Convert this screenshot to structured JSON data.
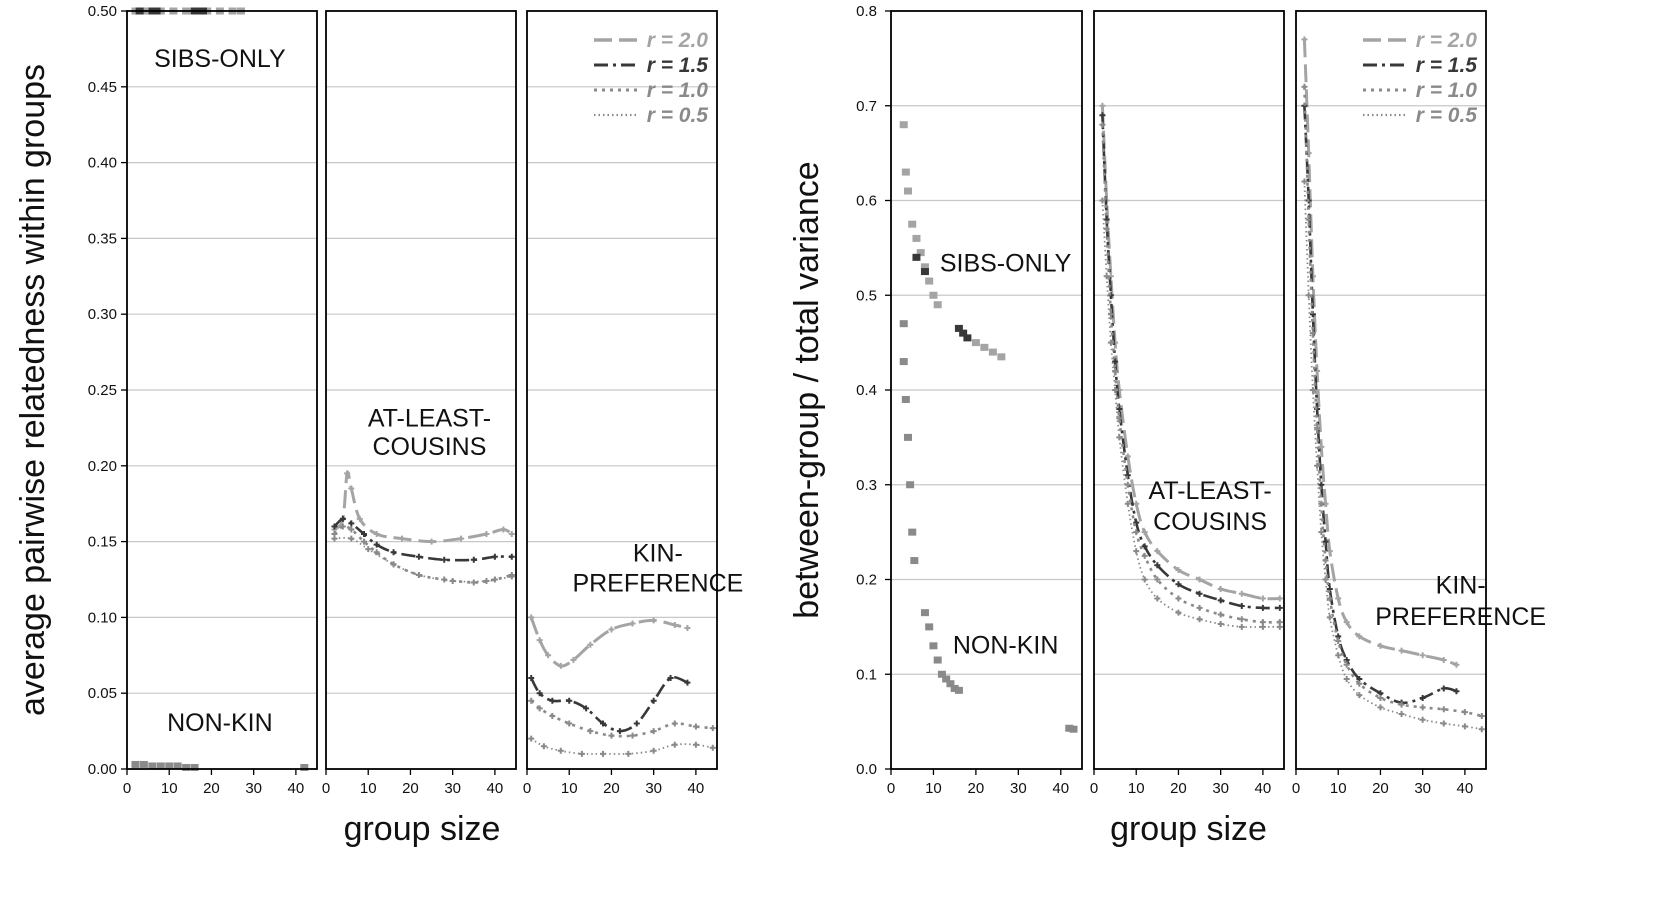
{
  "colors": {
    "r2.0": "#a4a4a4",
    "r1.5": "#383838",
    "r1.0": "#8a8a8a",
    "r0.5": "#8a8a8a",
    "grid": "#c8c8c8",
    "frame": "#000000"
  },
  "legend": [
    {
      "key": "r2.0",
      "label": "r = 2.0",
      "dash": "18,7",
      "width": 3
    },
    {
      "key": "r1.5",
      "label": "r = 1.5",
      "dash": "14,5,3,5",
      "width": 2.6
    },
    {
      "key": "r1.0",
      "label": "r = 1.0",
      "dash": "3,5",
      "width": 2.6
    },
    {
      "key": "r0.5",
      "label": "r = 0.5",
      "dash": "1.5,3",
      "width": 1.8
    }
  ],
  "chart_data": [
    {
      "type": "scatter",
      "xlabel": "group size",
      "ylabel": "average pairwise relatedness within groups",
      "ylim": [
        0,
        0.5
      ],
      "yticks": [
        "0.00",
        "0.05",
        "0.10",
        "0.15",
        "0.20",
        "0.25",
        "0.30",
        "0.35",
        "0.40",
        "0.45",
        "0.50"
      ],
      "xlim": [
        0,
        45
      ],
      "xticks": [
        "0",
        "10",
        "20",
        "30",
        "40"
      ],
      "grid": true,
      "panels": [
        {
          "labels": [
            {
              "text": "SIBS-ONLY",
              "at": [
                22,
                0.463
              ]
            },
            {
              "text": "NON-KIN",
              "at": [
                22,
                0.025
              ]
            }
          ],
          "series": [
            {
              "key": "r2.0",
              "x": [
                2,
                4,
                6,
                8,
                11,
                14,
                16,
                19,
                22,
                25,
                27
              ],
              "y": [
                0.5,
                0.5,
                0.5,
                0.5,
                0.5,
                0.5,
                0.5,
                0.5,
                0.5,
                0.5,
                0.5
              ],
              "line": false
            },
            {
              "key": "r1.5",
              "x": [
                3,
                6,
                7,
                16,
                17,
                18
              ],
              "y": [
                0.5,
                0.5,
                0.5,
                0.5,
                0.5,
                0.5
              ],
              "line": false
            },
            {
              "key": "r1.0",
              "x": [
                2,
                4,
                6,
                8,
                10,
                12,
                14,
                16,
                42
              ],
              "y": [
                0.003,
                0.003,
                0.002,
                0.002,
                0.002,
                0.002,
                0.001,
                0.001,
                0.001
              ],
              "line": false
            }
          ]
        },
        {
          "labels": [
            {
              "text": "AT-LEAST-",
              "at": [
                24.5,
                0.226
              ]
            },
            {
              "text": "COUSINS",
              "at": [
                24.5,
                0.207
              ]
            }
          ],
          "series": [
            {
              "key": "r2.0",
              "x": [
                2,
                4,
                5,
                6,
                8,
                12,
                18,
                25,
                32,
                38,
                42,
                44
              ],
              "y": [
                0.158,
                0.165,
                0.195,
                0.185,
                0.165,
                0.155,
                0.152,
                0.15,
                0.152,
                0.155,
                0.158,
                0.155
              ],
              "curve": true
            },
            {
              "key": "r1.5",
              "x": [
                2,
                4,
                6,
                9,
                12,
                16,
                22,
                28,
                35,
                40,
                44
              ],
              "y": [
                0.16,
                0.165,
                0.162,
                0.155,
                0.148,
                0.143,
                0.14,
                0.138,
                0.138,
                0.14,
                0.14
              ],
              "curve": true
            },
            {
              "key": "r1.0",
              "x": [
                2,
                4,
                6,
                9,
                12,
                16,
                22,
                28,
                35,
                40,
                44
              ],
              "y": [
                0.155,
                0.16,
                0.158,
                0.15,
                0.143,
                0.135,
                0.128,
                0.125,
                0.123,
                0.125,
                0.128
              ],
              "curve": true
            },
            {
              "key": "r0.5",
              "x": [
                2,
                6,
                10,
                16,
                22,
                30,
                38,
                44
              ],
              "y": [
                0.152,
                0.152,
                0.145,
                0.135,
                0.128,
                0.124,
                0.124,
                0.127
              ],
              "curve": true
            }
          ]
        },
        {
          "labels": [
            {
              "text": "KIN-",
              "at": [
                31,
                0.137
              ]
            },
            {
              "text": "PREFERENCE",
              "at": [
                31,
                0.117
              ]
            }
          ],
          "series": [
            {
              "key": "r2.0",
              "x": [
                1,
                3,
                5,
                8,
                11,
                15,
                20,
                25,
                30,
                35,
                38
              ],
              "y": [
                0.1,
                0.085,
                0.075,
                0.068,
                0.072,
                0.082,
                0.092,
                0.096,
                0.098,
                0.095,
                0.093
              ],
              "curve": true
            },
            {
              "key": "r1.5",
              "x": [
                1,
                3,
                6,
                10,
                14,
                18,
                22,
                26,
                30,
                34,
                38
              ],
              "y": [
                0.06,
                0.05,
                0.045,
                0.045,
                0.04,
                0.03,
                0.025,
                0.03,
                0.045,
                0.06,
                0.057
              ],
              "curve": true
            },
            {
              "key": "r1.0",
              "x": [
                1,
                3,
                6,
                10,
                15,
                20,
                25,
                30,
                35,
                40,
                44
              ],
              "y": [
                0.045,
                0.04,
                0.035,
                0.03,
                0.025,
                0.022,
                0.022,
                0.025,
                0.03,
                0.028,
                0.027
              ],
              "curve": true
            },
            {
              "key": "r0.5",
              "x": [
                1,
                4,
                8,
                13,
                18,
                24,
                30,
                35,
                40,
                44
              ],
              "y": [
                0.02,
                0.015,
                0.012,
                0.01,
                0.01,
                0.01,
                0.012,
                0.016,
                0.016,
                0.014
              ],
              "curve": true
            }
          ]
        }
      ]
    },
    {
      "type": "scatter",
      "xlabel": "group size",
      "ylabel": "between-group / total variance",
      "ylim": [
        0,
        0.8
      ],
      "yticks": [
        "0.0",
        "0.1",
        "0.2",
        "0.3",
        "0.4",
        "0.5",
        "0.6",
        "0.7",
        "0.8"
      ],
      "xlim": [
        0,
        45
      ],
      "xticks": [
        "0",
        "10",
        "20",
        "30",
        "40"
      ],
      "grid": true,
      "panels": [
        {
          "labels": [
            {
              "text": "SIBS-ONLY",
              "at": [
                27,
                0.525
              ]
            },
            {
              "text": "NON-KIN",
              "at": [
                27,
                0.122
              ]
            }
          ],
          "series": [
            {
              "key": "r2.0",
              "x": [
                3,
                3.5,
                4,
                5,
                6,
                7,
                8,
                9,
                10,
                11,
                20,
                22,
                24,
                26
              ],
              "y": [
                0.68,
                0.63,
                0.61,
                0.575,
                0.56,
                0.545,
                0.53,
                0.515,
                0.5,
                0.49,
                0.45,
                0.445,
                0.44,
                0.435
              ],
              "line": false
            },
            {
              "key": "r1.5",
              "x": [
                6,
                8,
                16,
                17,
                18
              ],
              "y": [
                0.54,
                0.525,
                0.465,
                0.46,
                0.455
              ],
              "line": false
            },
            {
              "key": "r1.0",
              "x": [
                3,
                3,
                3.5,
                4,
                4.5,
                5,
                5.5,
                8,
                9,
                10,
                11,
                12,
                13,
                14,
                15,
                16,
                42,
                43
              ],
              "y": [
                0.47,
                0.43,
                0.39,
                0.35,
                0.3,
                0.25,
                0.22,
                0.165,
                0.15,
                0.13,
                0.115,
                0.1,
                0.095,
                0.09,
                0.085,
                0.083,
                0.043,
                0.042
              ],
              "line": false
            }
          ]
        },
        {
          "labels": [
            {
              "text": "AT-LEAST-",
              "at": [
                27.5,
                0.285
              ]
            },
            {
              "text": "COUSINS",
              "at": [
                27.5,
                0.252
              ]
            }
          ],
          "series": [
            {
              "key": "r2.0",
              "x": [
                2,
                3,
                4,
                5,
                6,
                8,
                10,
                12,
                15,
                20,
                25,
                30,
                35,
                40,
                44
              ],
              "y": [
                0.7,
                0.6,
                0.52,
                0.45,
                0.4,
                0.33,
                0.28,
                0.25,
                0.23,
                0.21,
                0.2,
                0.19,
                0.185,
                0.18,
                0.18
              ],
              "curve": true
            },
            {
              "key": "r1.5",
              "x": [
                2,
                3,
                4,
                5,
                6,
                8,
                10,
                12,
                15,
                20,
                25,
                30,
                35,
                40,
                44
              ],
              "y": [
                0.69,
                0.58,
                0.5,
                0.43,
                0.38,
                0.31,
                0.26,
                0.235,
                0.215,
                0.195,
                0.185,
                0.178,
                0.172,
                0.17,
                0.17
              ],
              "curve": true
            },
            {
              "key": "r1.0",
              "x": [
                2,
                3,
                4,
                5,
                6,
                8,
                10,
                12,
                15,
                20,
                25,
                30,
                35,
                40,
                44
              ],
              "y": [
                0.68,
                0.57,
                0.48,
                0.42,
                0.37,
                0.3,
                0.25,
                0.225,
                0.2,
                0.18,
                0.17,
                0.163,
                0.158,
                0.155,
                0.155
              ],
              "curve": true
            },
            {
              "key": "r0.5",
              "x": [
                2,
                3,
                4,
                5,
                6,
                8,
                10,
                12,
                15,
                20,
                25,
                30,
                35,
                40,
                44
              ],
              "y": [
                0.6,
                0.52,
                0.45,
                0.4,
                0.35,
                0.28,
                0.23,
                0.2,
                0.18,
                0.165,
                0.158,
                0.153,
                0.15,
                0.15,
                0.15
              ],
              "curve": true
            }
          ]
        },
        {
          "labels": [
            {
              "text": "KIN-",
              "at": [
                39,
                0.185
              ]
            },
            {
              "text": "PREFERENCE",
              "at": [
                39,
                0.152
              ]
            }
          ],
          "series": [
            {
              "key": "r2.0",
              "x": [
                2,
                3,
                4,
                5,
                6,
                7,
                8,
                10,
                12,
                15,
                20,
                25,
                30,
                35,
                38
              ],
              "y": [
                0.77,
                0.65,
                0.52,
                0.42,
                0.34,
                0.28,
                0.23,
                0.18,
                0.155,
                0.14,
                0.13,
                0.125,
                0.12,
                0.115,
                0.11
              ],
              "curve": true
            },
            {
              "key": "r1.5",
              "x": [
                2,
                3,
                4,
                5,
                6,
                7,
                8,
                10,
                12,
                15,
                20,
                25,
                30,
                35,
                38
              ],
              "y": [
                0.7,
                0.6,
                0.48,
                0.38,
                0.3,
                0.24,
                0.19,
                0.14,
                0.115,
                0.095,
                0.08,
                0.07,
                0.075,
                0.085,
                0.082
              ],
              "curve": true
            },
            {
              "key": "r1.0",
              "x": [
                2,
                3,
                4,
                5,
                6,
                7,
                8,
                10,
                12,
                15,
                20,
                25,
                30,
                35,
                40,
                44
              ],
              "y": [
                0.72,
                0.58,
                0.46,
                0.36,
                0.28,
                0.22,
                0.18,
                0.135,
                0.11,
                0.09,
                0.075,
                0.068,
                0.065,
                0.063,
                0.06,
                0.056
              ],
              "curve": true
            },
            {
              "key": "r0.5",
              "x": [
                2,
                3,
                4,
                5,
                6,
                7,
                8,
                10,
                12,
                15,
                20,
                25,
                30,
                35,
                40,
                44
              ],
              "y": [
                0.62,
                0.5,
                0.4,
                0.32,
                0.25,
                0.2,
                0.16,
                0.12,
                0.095,
                0.078,
                0.065,
                0.058,
                0.052,
                0.048,
                0.045,
                0.042
              ],
              "curve": true
            }
          ]
        }
      ]
    }
  ]
}
